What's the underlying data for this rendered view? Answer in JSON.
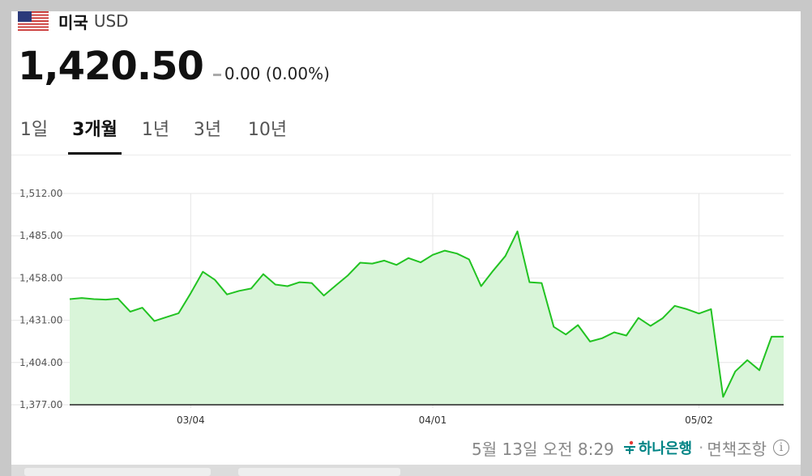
{
  "currency": {
    "country": "미국",
    "code": "USD",
    "price": "1,420.50",
    "change": "0.00 (0.00%)"
  },
  "tabs": [
    {
      "label": "1일",
      "active": false
    },
    {
      "label": "3개월",
      "active": true
    },
    {
      "label": "1년",
      "active": false
    },
    {
      "label": "3년",
      "active": false
    },
    {
      "label": "10년",
      "active": false
    }
  ],
  "footer": {
    "timestamp": "5월 13일 오전 8:29",
    "bank": "하나은행",
    "disclaimer": "면책조항"
  },
  "colors": {
    "line": "#22c322",
    "fill": "#d9f5d9",
    "grid": "#e6e6e6"
  },
  "chart_data": {
    "type": "area",
    "yticks": [
      "1,512.00",
      "1,485.00",
      "1,458.00",
      "1,431.00",
      "1,404.00",
      "1,377.00"
    ],
    "ylim": [
      1377,
      1512
    ],
    "xticks": [
      {
        "label": "03/04",
        "index": 10
      },
      {
        "label": "04/01",
        "index": 30
      },
      {
        "label": "05/02",
        "index": 52
      }
    ],
    "values": [
      1444.5,
      1445.2,
      1444.5,
      1444.2,
      1444.8,
      1436.5,
      1439.0,
      1430.5,
      1433.0,
      1435.5,
      1448.2,
      1462.0,
      1456.8,
      1447.5,
      1449.8,
      1451.3,
      1460.5,
      1453.8,
      1452.8,
      1455.3,
      1454.8,
      1446.8,
      1453.3,
      1459.7,
      1467.8,
      1467.2,
      1469.1,
      1466.4,
      1470.7,
      1468.0,
      1472.8,
      1475.5,
      1473.6,
      1469.9,
      1452.8,
      1462.7,
      1472.0,
      1487.8,
      1455.3,
      1454.8,
      1426.8,
      1421.9,
      1427.9,
      1417.4,
      1419.5,
      1423.3,
      1421.2,
      1432.5,
      1427.4,
      1432.3,
      1440.2,
      1438.1,
      1435.3,
      1438.1,
      1382.0,
      1398.3,
      1405.5,
      1399.1,
      1420.5,
      1420.5
    ]
  }
}
